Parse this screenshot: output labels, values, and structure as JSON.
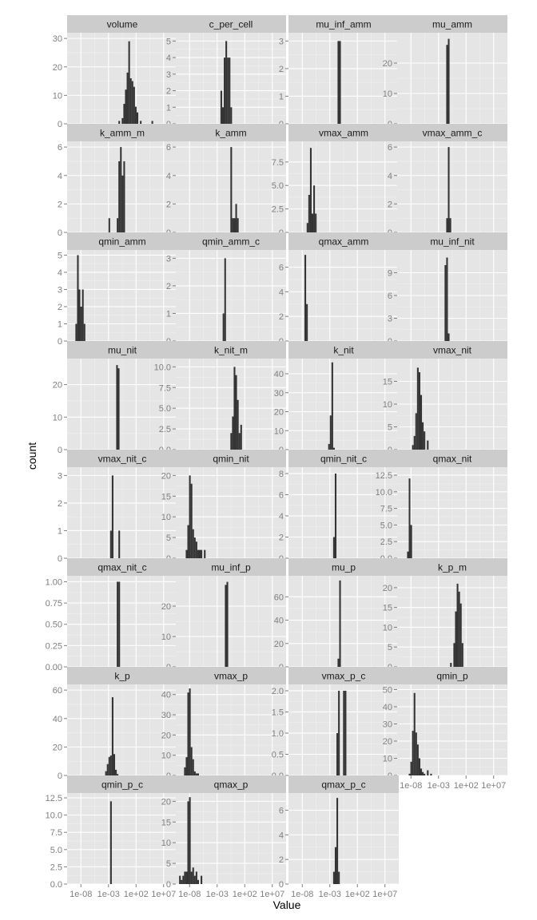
{
  "chart_data": {
    "type": "histogram-facet-grid",
    "xlabel": "Value",
    "ylabel": "count",
    "x_tick_labels": [
      "1e-08",
      "1e-03",
      "1e+02",
      "1e+07"
    ],
    "x_tick_log10": [
      -8,
      -3,
      2,
      7
    ],
    "x_range_log10": [
      -10.5,
      9.5
    ],
    "colors": {
      "panel": "#e5e5e5",
      "strip": "#cccccc",
      "bar": "#333333",
      "grid_major": "#ffffff",
      "grid_minor": "#f0f0f0"
    },
    "panels": [
      {
        "name": "volume",
        "yticks": [
          0,
          10,
          20,
          30
        ],
        "ylabels": [
          "0",
          "10",
          "20",
          "30"
        ],
        "ymax": 32,
        "bars": [
          [
            -1.2,
            1
          ],
          [
            -0.6,
            2
          ],
          [
            -0.3,
            7
          ],
          [
            0,
            12
          ],
          [
            0.3,
            18
          ],
          [
            0.6,
            29
          ],
          [
            0.9,
            16
          ],
          [
            1.2,
            15
          ],
          [
            1.5,
            13
          ],
          [
            1.8,
            6
          ],
          [
            2.1,
            4
          ],
          [
            2.7,
            1
          ],
          [
            4.8,
            1
          ]
        ]
      },
      {
        "name": "c_per_cell",
        "yticks": [
          0,
          1,
          2,
          3,
          4,
          5
        ],
        "ylabels": [
          "0",
          "1",
          "2",
          "3",
          "4",
          "5"
        ],
        "ymax": 5.5,
        "bars": [
          [
            -2.4,
            2
          ],
          [
            -2.1,
            1
          ],
          [
            -1.8,
            4
          ],
          [
            -1.5,
            5
          ],
          [
            -1.2,
            4
          ],
          [
            -0.9,
            4
          ],
          [
            -0.6,
            1
          ]
        ]
      },
      {
        "name": "mu_inf_amm",
        "yticks": [
          0,
          1,
          2,
          3
        ],
        "ylabels": [
          "0",
          "1",
          "2",
          "3"
        ],
        "ymax": 3.3,
        "bars": [
          [
            -1.6,
            3
          ],
          [
            -1.3,
            3
          ]
        ]
      },
      {
        "name": "mu_amm",
        "yticks": [
          0,
          10,
          20
        ],
        "ylabels": [
          "0",
          "10",
          "20"
        ],
        "ymax": 30,
        "bars": [
          [
            -1.6,
            26
          ],
          [
            -1.3,
            28
          ]
        ]
      },
      {
        "name": "k_amm_m",
        "yticks": [
          0,
          2,
          4,
          6
        ],
        "ylabels": [
          "0",
          "2",
          "4",
          "6"
        ],
        "ymax": 6.4,
        "bars": [
          [
            -3.0,
            1
          ],
          [
            -1.5,
            1
          ],
          [
            -1.2,
            5
          ],
          [
            -0.9,
            6
          ],
          [
            -0.6,
            4
          ],
          [
            -0.3,
            5
          ]
        ]
      },
      {
        "name": "k_amm",
        "yticks": [
          0,
          2,
          4,
          6
        ],
        "ylabels": [
          "0",
          "2",
          "4",
          "6"
        ],
        "ymax": 6.4,
        "bars": [
          [
            -0.6,
            6
          ],
          [
            -0.3,
            1
          ],
          [
            0,
            1
          ],
          [
            0.3,
            2
          ],
          [
            0.6,
            1
          ]
        ]
      },
      {
        "name": "vmax_amm",
        "yticks": [
          0,
          2.5,
          5.0,
          7.5
        ],
        "ylabels": [
          "0",
          "2.5",
          "5.0",
          "7.5"
        ],
        "ymax": 9.7,
        "bars": [
          [
            -7.2,
            1
          ],
          [
            -6.9,
            4
          ],
          [
            -6.6,
            9
          ],
          [
            -6.3,
            2
          ],
          [
            -6.0,
            5
          ],
          [
            -5.7,
            2
          ]
        ]
      },
      {
        "name": "vmax_amm_c",
        "yticks": [
          0,
          2,
          4,
          6
        ],
        "ylabels": [
          "0",
          "2",
          "4",
          "6"
        ],
        "ymax": 6.4,
        "bars": [
          [
            -1.6,
            1
          ],
          [
            -1.3,
            6
          ],
          [
            -1.0,
            1
          ]
        ]
      },
      {
        "name": "qmin_amm",
        "yticks": [
          0,
          1,
          2,
          3,
          4,
          5
        ],
        "ylabels": [
          "0",
          "1",
          "2",
          "3",
          "4",
          "5"
        ],
        "ymax": 5.3,
        "bars": [
          [
            -9.0,
            1
          ],
          [
            -8.7,
            5
          ],
          [
            -8.4,
            3
          ],
          [
            -8.1,
            2
          ],
          [
            -7.8,
            3
          ],
          [
            -7.5,
            1
          ]
        ]
      },
      {
        "name": "qmin_amm_c",
        "yticks": [
          0,
          1,
          2,
          3
        ],
        "ylabels": [
          "0",
          "1",
          "2",
          "3"
        ],
        "ymax": 3.3,
        "bars": [
          [
            -2.0,
            1
          ],
          [
            -1.7,
            3
          ]
        ]
      },
      {
        "name": "qmax_amm",
        "yticks": [
          0,
          2,
          4,
          6
        ],
        "ylabels": [
          "0",
          "2",
          "4",
          "6"
        ],
        "ymax": 7.4,
        "bars": [
          [
            -7.6,
            7
          ],
          [
            -7.3,
            3
          ]
        ]
      },
      {
        "name": "mu_inf_nit",
        "yticks": [
          0,
          3,
          6,
          9
        ],
        "ylabels": [
          "0",
          "3",
          "6",
          "9"
        ],
        "ymax": 12,
        "bars": [
          [
            -1.9,
            10
          ],
          [
            -1.6,
            11
          ],
          [
            -1.3,
            1
          ]
        ]
      },
      {
        "name": "mu_nit",
        "yticks": [
          0,
          10,
          20
        ],
        "ylabels": [
          "0",
          "10",
          "20"
        ],
        "ymax": 28,
        "bars": [
          [
            -1.6,
            26
          ],
          [
            -1.3,
            25
          ]
        ]
      },
      {
        "name": "k_nit_m",
        "yticks": [
          0,
          2.5,
          5.0,
          7.5,
          10.0
        ],
        "ylabels": [
          "0.0",
          "2.5",
          "5.0",
          "7.5",
          "10.0"
        ],
        "ymax": 11,
        "bars": [
          [
            -0.6,
            2
          ],
          [
            -0.3,
            4
          ],
          [
            0,
            10
          ],
          [
            0.3,
            9
          ],
          [
            0.6,
            6
          ],
          [
            0.9,
            2
          ],
          [
            1.2,
            3
          ]
        ]
      },
      {
        "name": "k_nit",
        "yticks": [
          0,
          10,
          20,
          30,
          40
        ],
        "ylabels": [
          "0",
          "10",
          "20",
          "30",
          "40"
        ],
        "ymax": 48,
        "bars": [
          [
            -3.3,
            3
          ],
          [
            -3.0,
            18
          ],
          [
            -2.7,
            46
          ],
          [
            -2.4,
            1
          ]
        ]
      },
      {
        "name": "vmax_nit",
        "yticks": [
          0,
          5,
          10,
          15
        ],
        "ylabels": [
          "0",
          "5",
          "10",
          "15"
        ],
        "ymax": 20,
        "bars": [
          [
            -7.8,
            1
          ],
          [
            -7.5,
            3
          ],
          [
            -7.2,
            8
          ],
          [
            -6.9,
            18
          ],
          [
            -6.6,
            17
          ],
          [
            -6.3,
            12
          ],
          [
            -6.0,
            6
          ],
          [
            -5.7,
            4
          ],
          [
            -5.1,
            2
          ]
        ]
      },
      {
        "name": "vmax_nit_c",
        "yticks": [
          0,
          1,
          2,
          3
        ],
        "ylabels": [
          "0",
          "1",
          "2",
          "3"
        ],
        "ymax": 3.3,
        "bars": [
          [
            -2.7,
            1
          ],
          [
            -2.4,
            3
          ],
          [
            -1.2,
            1
          ]
        ]
      },
      {
        "name": "qmin_nit",
        "yticks": [
          0,
          5,
          10,
          15,
          20
        ],
        "ylabels": [
          "0",
          "5",
          "10",
          "15",
          "20"
        ],
        "ymax": 22,
        "bars": [
          [
            -8.7,
            2
          ],
          [
            -8.4,
            8
          ],
          [
            -8.1,
            20
          ],
          [
            -7.8,
            18
          ],
          [
            -7.5,
            7
          ],
          [
            -7.2,
            5
          ],
          [
            -6.9,
            4
          ],
          [
            -6.6,
            2
          ],
          [
            -6.3,
            2
          ],
          [
            -6.0,
            2
          ],
          [
            -5.4,
            2
          ]
        ]
      },
      {
        "name": "qmin_nit_c",
        "yticks": [
          0,
          2,
          4,
          6,
          8
        ],
        "ylabels": [
          "0",
          "2",
          "4",
          "6",
          "8"
        ],
        "ymax": 8.6,
        "bars": [
          [
            -2.4,
            2
          ],
          [
            -2.1,
            8
          ]
        ]
      },
      {
        "name": "qmax_nit",
        "yticks": [
          0,
          2.5,
          5.0,
          7.5,
          10.0,
          12.5
        ],
        "ylabels": [
          "0.0",
          "2.5",
          "5.0",
          "7.5",
          "10.0",
          "12.5"
        ],
        "ymax": 13.7,
        "bars": [
          [
            -8.7,
            1
          ],
          [
            -8.4,
            12
          ],
          [
            -8.1,
            5
          ]
        ]
      },
      {
        "name": "qmax_nit_c",
        "yticks": [
          0,
          0.25,
          0.5,
          0.75,
          1.0
        ],
        "ylabels": [
          "0.00",
          "0.25",
          "0.50",
          "0.75",
          "1.00"
        ],
        "ymax": 1.07,
        "bars": [
          [
            -1.5,
            1
          ],
          [
            -1.2,
            1
          ]
        ]
      },
      {
        "name": "mu_inf_p",
        "yticks": [
          0,
          10,
          20
        ],
        "ylabels": [
          "0",
          "10",
          "20"
        ],
        "ymax": 30,
        "bars": [
          [
            -1.6,
            27
          ],
          [
            -1.3,
            28
          ]
        ]
      },
      {
        "name": "mu_p",
        "yticks": [
          0,
          20,
          40,
          60
        ],
        "ylabels": [
          "0",
          "20",
          "40",
          "60"
        ],
        "ymax": 78,
        "bars": [
          [
            -1.6,
            7
          ],
          [
            -1.3,
            74
          ]
        ]
      },
      {
        "name": "k_p_m",
        "yticks": [
          0,
          5,
          10,
          15,
          20
        ],
        "ylabels": [
          "0",
          "5",
          "10",
          "15",
          "20"
        ],
        "ymax": 23,
        "bars": [
          [
            -0.9,
            1
          ],
          [
            -0.3,
            6
          ],
          [
            0,
            14
          ],
          [
            0.3,
            21
          ],
          [
            0.6,
            19
          ],
          [
            0.9,
            16
          ],
          [
            1.2,
            6
          ]
        ]
      },
      {
        "name": "k_p",
        "yticks": [
          0,
          20,
          40,
          60
        ],
        "ylabels": [
          "0",
          "20",
          "40",
          "60"
        ],
        "ymax": 64,
        "bars": [
          [
            -3.6,
            3
          ],
          [
            -3.3,
            8
          ],
          [
            -3.0,
            13
          ],
          [
            -2.7,
            14
          ],
          [
            -2.4,
            55
          ],
          [
            -2.1,
            15
          ],
          [
            -1.8,
            4
          ],
          [
            -1.5,
            1
          ]
        ]
      },
      {
        "name": "vmax_p",
        "yticks": [
          0,
          10,
          20,
          30,
          40
        ],
        "ylabels": [
          "0",
          "10",
          "20",
          "30",
          "40"
        ],
        "ymax": 45,
        "bars": [
          [
            -9.0,
            4
          ],
          [
            -8.7,
            9
          ],
          [
            -8.4,
            41
          ],
          [
            -8.1,
            43
          ],
          [
            -7.8,
            14
          ],
          [
            -7.5,
            8
          ],
          [
            -7.2,
            2
          ],
          [
            -6.9,
            1
          ],
          [
            -6.6,
            1
          ]
        ]
      },
      {
        "name": "vmax_p_c",
        "yticks": [
          0,
          0.5,
          1.0,
          1.5,
          2.0
        ],
        "ylabels": [
          "0.0",
          "0.5",
          "1.0",
          "1.5",
          "2.0"
        ],
        "ymax": 2.15,
        "bars": [
          [
            -1.8,
            1
          ],
          [
            -1.5,
            2
          ],
          [
            -0.6,
            2
          ],
          [
            -0.3,
            2
          ]
        ]
      },
      {
        "name": "qmin_p",
        "yticks": [
          0,
          10,
          20,
          30,
          40,
          50
        ],
        "ylabels": [
          "0",
          "10",
          "20",
          "30",
          "40",
          "50"
        ],
        "ymax": 53,
        "bars": [
          [
            -8.4,
            1
          ],
          [
            -8.1,
            8
          ],
          [
            -7.8,
            26
          ],
          [
            -7.5,
            48
          ],
          [
            -7.2,
            25
          ],
          [
            -6.9,
            18
          ],
          [
            -6.6,
            10
          ],
          [
            -6.3,
            4
          ],
          [
            -6.0,
            2
          ],
          [
            -5.7,
            1
          ],
          [
            -5.1,
            3
          ],
          [
            -4.5,
            1
          ]
        ]
      },
      {
        "name": "qmin_p_c",
        "yticks": [
          0,
          2.5,
          5.0,
          7.5,
          10.0,
          12.5
        ],
        "ylabels": [
          "0.0",
          "2.5",
          "5.0",
          "7.5",
          "10.0",
          "12.5"
        ],
        "ymax": 13.2,
        "bars": [
          [
            -2.7,
            12
          ]
        ]
      },
      {
        "name": "qmax_p",
        "yticks": [
          0,
          5,
          10,
          15,
          20
        ],
        "ylabels": [
          "0",
          "5",
          "10",
          "15",
          "20"
        ],
        "ymax": 22,
        "bars": [
          [
            -9.9,
            2
          ],
          [
            -9.6,
            1
          ],
          [
            -9.3,
            2
          ],
          [
            -9.0,
            3
          ],
          [
            -8.7,
            3
          ],
          [
            -8.4,
            20
          ],
          [
            -8.1,
            21
          ],
          [
            -7.8,
            3
          ],
          [
            -7.5,
            4
          ],
          [
            -7.2,
            2
          ],
          [
            -6.9,
            3
          ],
          [
            -6.6,
            1
          ],
          [
            -6.0,
            2
          ]
        ]
      },
      {
        "name": "qmax_p_c",
        "yticks": [
          0,
          2,
          4,
          6
        ],
        "ylabels": [
          "0",
          "2",
          "4",
          "6"
        ],
        "ymax": 7.4,
        "bars": [
          [
            -2.4,
            1
          ],
          [
            -2.1,
            3
          ],
          [
            -1.8,
            7
          ],
          [
            -1.5,
            1
          ]
        ]
      }
    ]
  }
}
